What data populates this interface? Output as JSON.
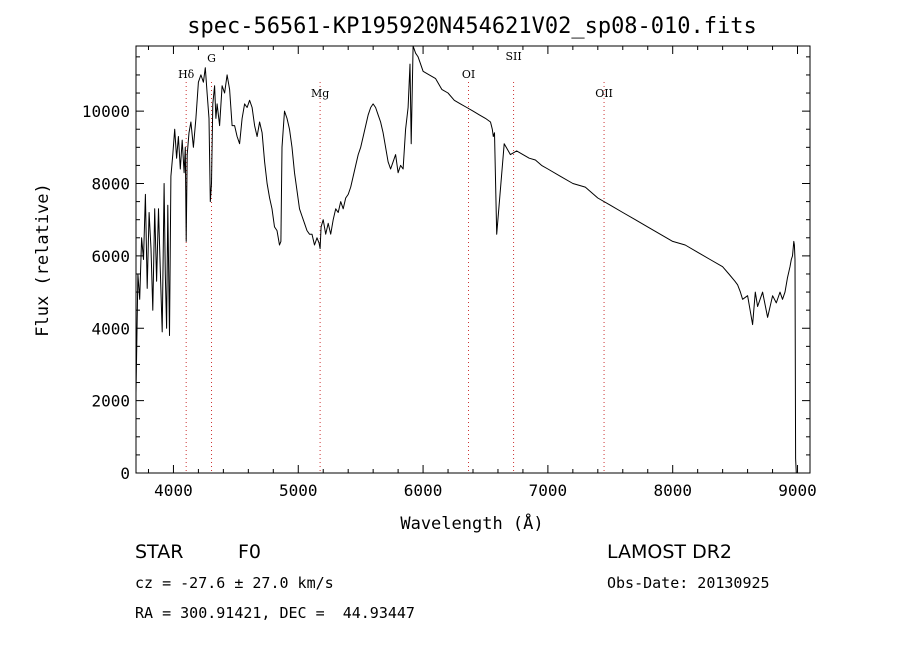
{
  "chart_data": {
    "type": "line",
    "title": "spec-56561-KP195920N454621V02_sp08-010.fits",
    "xlabel": "Wavelength (Å)",
    "ylabel": "Flux (relative)",
    "xlim": [
      3700,
      9100
    ],
    "ylim": [
      0,
      11800
    ],
    "xticks": [
      4000,
      5000,
      6000,
      7000,
      8000,
      9000
    ],
    "yticks": [
      0,
      2000,
      4000,
      6000,
      8000,
      10000
    ],
    "line_color": "#000000",
    "marker_color": "#cc3333",
    "lines": [
      {
        "label": "Hδ",
        "wavelength": 4102
      },
      {
        "label": "G",
        "wavelength": 4305
      },
      {
        "label": "Mg",
        "wavelength": 5175
      },
      {
        "label": "OI",
        "wavelength": 6364
      },
      {
        "label": "SII",
        "wavelength": 6725
      },
      {
        "label": "OII",
        "wavelength": 7450
      }
    ],
    "series": [
      {
        "x": [
          3700,
          3715,
          3730,
          3745,
          3760,
          3775,
          3790,
          3805,
          3820,
          3835,
          3850,
          3865,
          3880,
          3895,
          3910,
          3925,
          3935,
          3945,
          3955,
          3968,
          3980,
          3995,
          4010,
          4025,
          4040,
          4055,
          4070,
          4085,
          4095,
          4102,
          4110,
          4125,
          4140,
          4160,
          4180,
          4200,
          4220,
          4240,
          4255,
          4270,
          4285,
          4295,
          4305,
          4315,
          4330,
          4340,
          4350,
          4370,
          4390,
          4410,
          4430,
          4450,
          4470,
          4490,
          4510,
          4530,
          4550,
          4570,
          4590,
          4610,
          4630,
          4650,
          4670,
          4690,
          4710,
          4730,
          4750,
          4770,
          4790,
          4810,
          4830,
          4850,
          4861,
          4870,
          4890,
          4910,
          4930,
          4950,
          4970,
          4990,
          5010,
          5030,
          5050,
          5070,
          5090,
          5110,
          5130,
          5150,
          5167,
          5175,
          5183,
          5200,
          5220,
          5240,
          5260,
          5280,
          5300,
          5320,
          5340,
          5360,
          5380,
          5400,
          5420,
          5440,
          5460,
          5480,
          5500,
          5520,
          5540,
          5560,
          5580,
          5600,
          5620,
          5640,
          5660,
          5680,
          5700,
          5720,
          5740,
          5760,
          5780,
          5800,
          5820,
          5840,
          5860,
          5880,
          5895,
          5905,
          5920,
          5940,
          5960,
          5980,
          6000,
          6050,
          6100,
          6150,
          6200,
          6250,
          6300,
          6350,
          6400,
          6450,
          6500,
          6540,
          6555,
          6563,
          6572,
          6590,
          6650,
          6700,
          6750,
          6800,
          6850,
          6900,
          6950,
          7000,
          7100,
          7200,
          7300,
          7400,
          7500,
          7600,
          7700,
          7800,
          7900,
          8000,
          8100,
          8200,
          8300,
          8400,
          8450,
          8498,
          8520,
          8542,
          8560,
          8600,
          8640,
          8662,
          8680,
          8720,
          8760,
          8800,
          8830,
          8860,
          8880,
          8900,
          8920,
          8940,
          8950,
          8960,
          8970,
          8975,
          8980,
          8985,
          8990
        ],
        "y": [
          2200,
          5500,
          4800,
          6500,
          5900,
          7700,
          5100,
          7200,
          6200,
          4500,
          7300,
          5300,
          7300,
          5600,
          3900,
          8000,
          5500,
          4000,
          7400,
          3800,
          8200,
          8800,
          9500,
          8700,
          9300,
          8400,
          9200,
          8300,
          9000,
          6400,
          8800,
          9400,
          9700,
          9000,
          9800,
          10800,
          11000,
          10800,
          11200,
          10500,
          9800,
          7500,
          8000,
          10200,
          10700,
          9800,
          10200,
          9600,
          10700,
          10500,
          11000,
          10600,
          9600,
          9600,
          9300,
          9100,
          9800,
          10200,
          10100,
          10300,
          10100,
          9600,
          9300,
          9700,
          9400,
          8600,
          8000,
          7600,
          7300,
          6800,
          6700,
          6300,
          6400,
          9000,
          10000,
          9800,
          9500,
          9000,
          8300,
          7800,
          7300,
          7100,
          6900,
          6700,
          6600,
          6600,
          6300,
          6500,
          6350,
          6200,
          6800,
          7000,
          6600,
          6900,
          6600,
          7000,
          7300,
          7200,
          7500,
          7300,
          7600,
          7700,
          7900,
          8200,
          8500,
          8800,
          9000,
          9300,
          9600,
          9900,
          10100,
          10200,
          10100,
          9900,
          9700,
          9400,
          9000,
          8600,
          8400,
          8600,
          8800,
          8300,
          8500,
          8400,
          9500,
          10100,
          11300,
          9100,
          11800,
          11600,
          11500,
          11300,
          11100,
          11000,
          10900,
          10600,
          10500,
          10300,
          10200,
          10100,
          10000,
          9900,
          9800,
          9700,
          9500,
          9300,
          9400,
          6600,
          9100,
          8800,
          8900,
          8800,
          8700,
          8650,
          8500,
          8400,
          8200,
          8000,
          7900,
          7600,
          7400,
          7200,
          7000,
          6800,
          6600,
          6400,
          6300,
          6100,
          5900,
          5700,
          5500,
          5300,
          5200,
          5000,
          4800,
          4900,
          4100,
          5000,
          4600,
          5000,
          4300,
          4900,
          4700,
          5000,
          4800,
          5000,
          5400,
          5700,
          5900,
          6000,
          6400,
          6300,
          5900,
          400,
          0
        ]
      }
    ]
  },
  "info": {
    "object_class": "STAR",
    "subclass": "F0",
    "redshift": "cz = -27.6 ± 27.0 km/s",
    "coords": "RA = 300.91421, DEC =  44.93447",
    "survey": "LAMOST DR2",
    "obs_date": "Obs-Date: 20130925"
  }
}
